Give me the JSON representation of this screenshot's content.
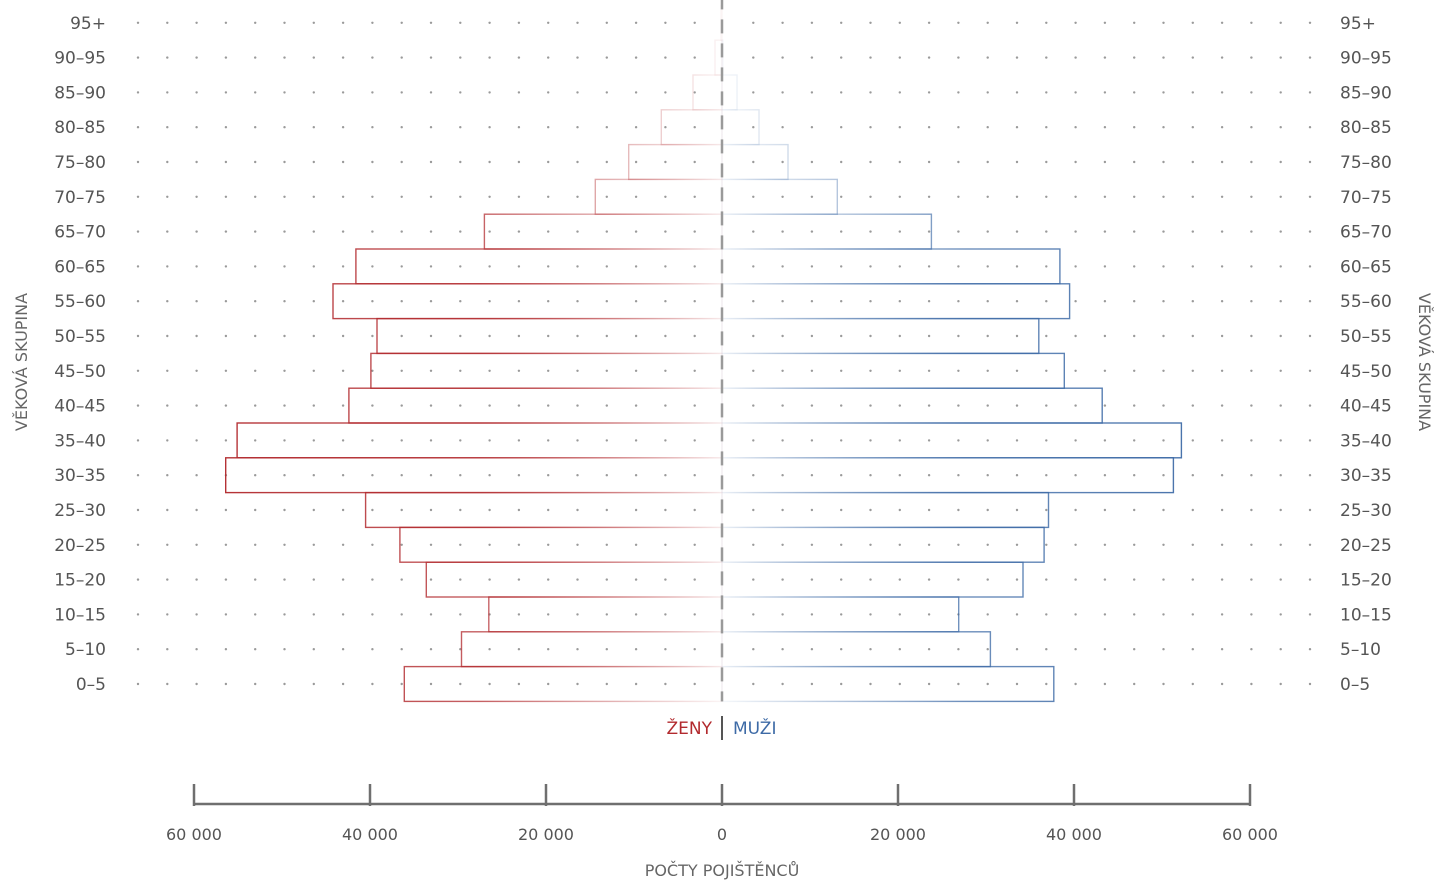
{
  "chart_data": {
    "type": "bar",
    "subtype": "population-pyramid",
    "categories": [
      "0–5",
      "5–10",
      "10–15",
      "15–20",
      "20–25",
      "25–30",
      "30–35",
      "35–40",
      "40–45",
      "45–50",
      "50–55",
      "55–60",
      "60–65",
      "65–70",
      "70–75",
      "75–80",
      "80–85",
      "85–90",
      "90–95",
      "95+"
    ],
    "series": [
      {
        "name": "ŽENY",
        "side": "left",
        "color": "#b22a2e",
        "values": [
          36100,
          29600,
          26500,
          33600,
          36600,
          40500,
          56400,
          55100,
          42400,
          39900,
          39200,
          44200,
          41600,
          27000,
          14400,
          10600,
          6900,
          3300,
          800,
          100
        ]
      },
      {
        "name": "MUŽI",
        "side": "right",
        "color": "#3d6aa6",
        "values": [
          37700,
          30500,
          26900,
          34200,
          36600,
          37100,
          51300,
          52200,
          43200,
          38900,
          36000,
          39500,
          38400,
          23800,
          13100,
          7500,
          4200,
          1700,
          100,
          0
        ]
      }
    ],
    "xlim": [
      -60000,
      60000
    ],
    "x_ticks": [
      -60000,
      -40000,
      -20000,
      0,
      20000,
      40000,
      60000
    ],
    "x_tick_labels": [
      "60 000",
      "40 000",
      "20 000",
      "0",
      "20 000",
      "40 000",
      "60 000"
    ],
    "xlabel": "POČTY POJIŠTĚNCŮ",
    "ylabel_left": "VĚKOVÁ SKUPINA",
    "ylabel_right": "VĚKOVÁ SKUPINA",
    "legend": {
      "left_label": "ŽENY",
      "right_label": "MUŽI",
      "placement": "bottom-center"
    },
    "grid": "dotted-rows"
  }
}
